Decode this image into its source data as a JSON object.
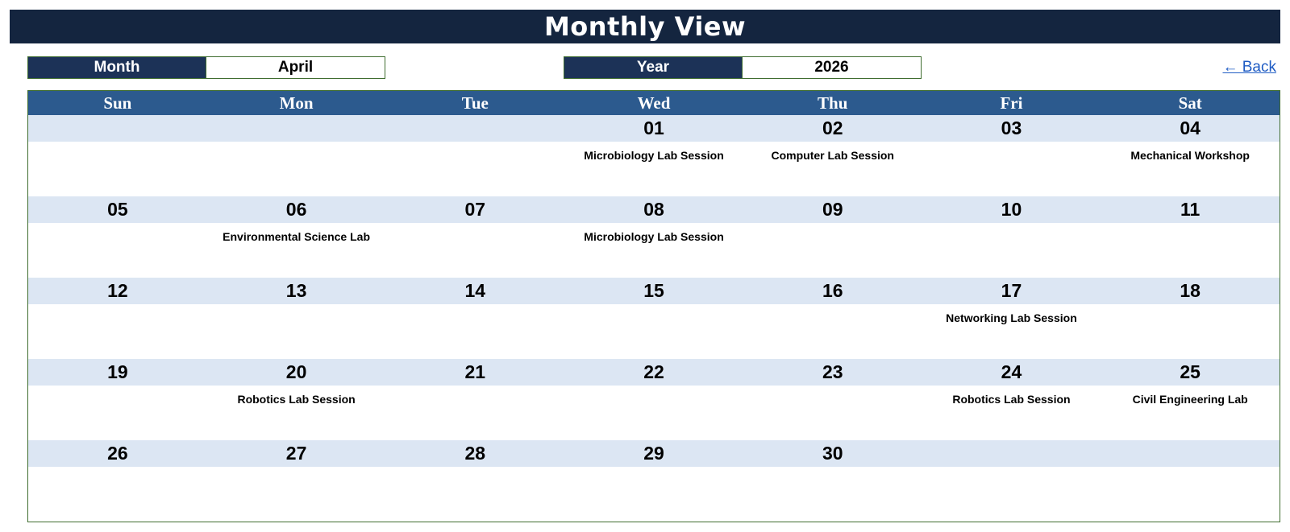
{
  "title": "Monthly View",
  "month": {
    "label": "Month",
    "value": "April"
  },
  "year": {
    "label": "Year",
    "value": "2026"
  },
  "back_label": "← Back",
  "colors": {
    "title_bg": "#14253f",
    "label_bg": "#1c3257",
    "header_bg": "#2c5a8e",
    "date_band": "#dce6f3",
    "border": "#3f6d2f",
    "link": "#1f5cc4"
  },
  "days_of_week": [
    "Sun",
    "Mon",
    "Tue",
    "Wed",
    "Thu",
    "Fri",
    "Sat"
  ],
  "weeks": [
    [
      {
        "day": "",
        "event": ""
      },
      {
        "day": "",
        "event": ""
      },
      {
        "day": "",
        "event": ""
      },
      {
        "day": "01",
        "event": "Microbiology Lab Session"
      },
      {
        "day": "02",
        "event": "Computer Lab Session"
      },
      {
        "day": "03",
        "event": ""
      },
      {
        "day": "04",
        "event": "Mechanical Workshop"
      }
    ],
    [
      {
        "day": "05",
        "event": ""
      },
      {
        "day": "06",
        "event": "Environmental Science Lab"
      },
      {
        "day": "07",
        "event": ""
      },
      {
        "day": "08",
        "event": "Microbiology Lab Session"
      },
      {
        "day": "09",
        "event": ""
      },
      {
        "day": "10",
        "event": ""
      },
      {
        "day": "11",
        "event": ""
      }
    ],
    [
      {
        "day": "12",
        "event": ""
      },
      {
        "day": "13",
        "event": ""
      },
      {
        "day": "14",
        "event": ""
      },
      {
        "day": "15",
        "event": ""
      },
      {
        "day": "16",
        "event": ""
      },
      {
        "day": "17",
        "event": "Networking Lab Session"
      },
      {
        "day": "18",
        "event": ""
      }
    ],
    [
      {
        "day": "19",
        "event": ""
      },
      {
        "day": "20",
        "event": "Robotics Lab Session"
      },
      {
        "day": "21",
        "event": ""
      },
      {
        "day": "22",
        "event": ""
      },
      {
        "day": "23",
        "event": ""
      },
      {
        "day": "24",
        "event": "Robotics Lab Session"
      },
      {
        "day": "25",
        "event": "Civil Engineering Lab"
      }
    ],
    [
      {
        "day": "26",
        "event": ""
      },
      {
        "day": "27",
        "event": ""
      },
      {
        "day": "28",
        "event": ""
      },
      {
        "day": "29",
        "event": ""
      },
      {
        "day": "30",
        "event": ""
      },
      {
        "day": "",
        "event": ""
      },
      {
        "day": "",
        "event": ""
      }
    ]
  ]
}
